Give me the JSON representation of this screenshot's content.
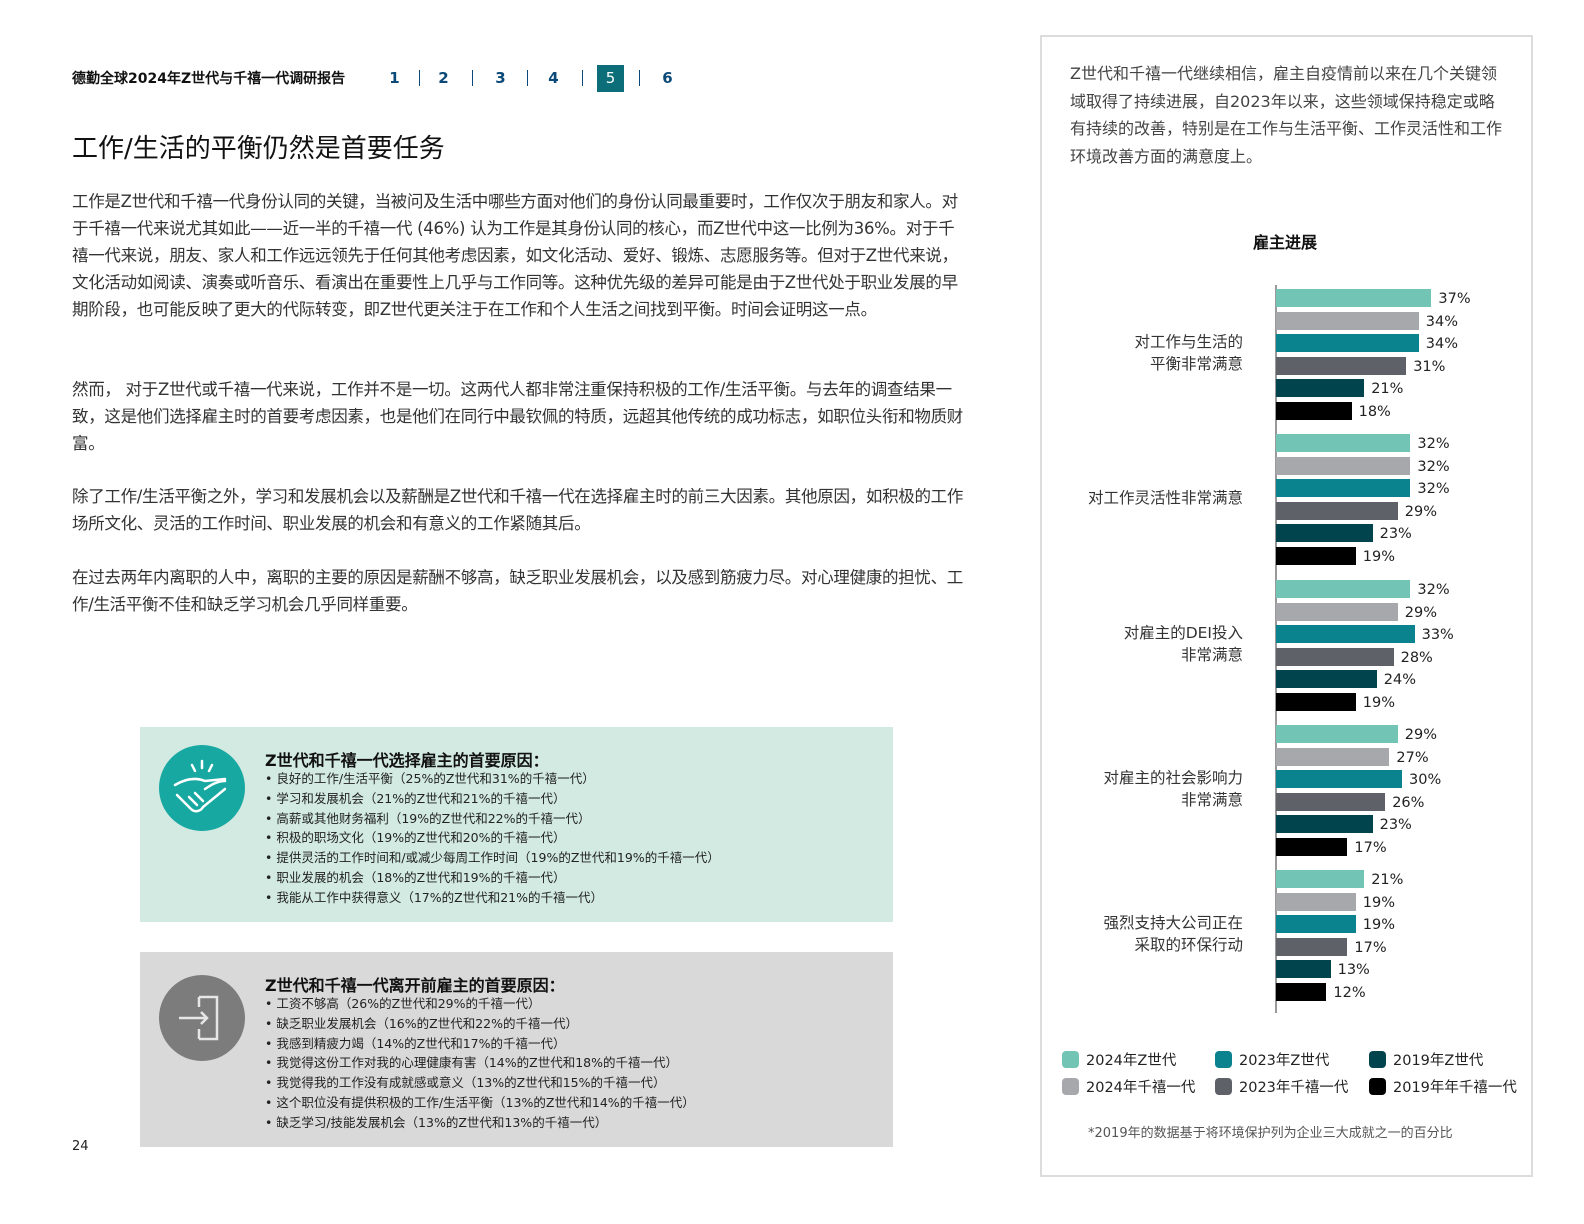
{
  "header": {
    "report_title": "德勤全球2024年Z世代与千禧一代调研报告",
    "nav": [
      "1",
      "2",
      "3",
      "4",
      "5",
      "6"
    ],
    "active_nav": "5"
  },
  "page_title": "工作/生活的平衡仍然是首要任务",
  "paragraphs": [
    "工作是Z世代和千禧一代身份认同的关键，当被问及生活中哪些方面对他们的身份认同最重要时，工作仅次于朋友和家人。对于千禧一代来说尤其如此——近一半的千禧一代 (46%) 认为工作是其身份认同的核心，而Z世代中这一比例为36%。对于千禧一代来说，朋友、家人和工作远远领先于任何其他考虑因素，如文化活动、爱好、锻炼、志愿服务等。但对于Z世代来说，文化活动如阅读、演奏或听音乐、看演出在重要性上几乎与工作同等。这种优先级的差异可能是由于Z世代处于职业发展的早期阶段，也可能反映了更大的代际转变，即Z世代更关注于在工作和个人生活之间找到平衡。时间会证明这一点。",
    "然而， 对于Z世代或千禧一代来说，工作并不是一切。这两代人都非常注重保持积极的工作/生活平衡。与去年的调查结果一致，这是他们选择雇主时的首要考虑因素，也是他们在同行中最钦佩的特质，远超其他传统的成功标志，如职位头衔和物质财富。",
    "除了工作/生活平衡之外，学习和发展机会以及薪酬是Z世代和千禧一代在选择雇主时的前三大因素。其他原因，如积极的工作场所文化、灵活的工作时间、职业发展的机会和有意义的工作紧随其后。",
    "在过去两年内离职的人中，离职的主要的原因是薪酬不够高，缺乏职业发展机会，以及感到筋疲力尽。对心理健康的担忧、工作/生活平衡不佳和缺乏学习机会几乎同样重要。"
  ],
  "choose_box": {
    "icon": "handshake-icon",
    "title": "Z世代和千禧一代选择雇主的首要原因：",
    "items": [
      "• 良好的工作/生活平衡（25%的Z世代和31%的千禧一代）",
      "• 学习和发展机会（21%的Z世代和21%的千禧一代）",
      "• 高薪或其他财务福利（19%的Z世代和22%的千禧一代）",
      "• 积极的职场文化（19%的Z世代和20%的千禧一代）",
      "• 提供灵活的工作时间和/或减少每周工作时间（19%的Z世代和19%的千禧一代）",
      "• 职业发展的机会（18%的Z世代和19%的千禧一代）",
      "• 我能从工作中获得意义（17%的Z世代和21%的千禧一代）"
    ]
  },
  "leave_box": {
    "icon": "exit-door-icon",
    "title": "Z世代和千禧一代离开前雇主的首要原因：",
    "items": [
      "• 工资不够高（26%的Z世代和29%的千禧一代）",
      "• 缺乏职业发展机会（16%的Z世代和22%的千禧一代）",
      "• 我感到精疲力竭（14%的Z世代和17%的千禧一代）",
      "• 我觉得这份工作对我的心理健康有害（14%的Z世代和18%的千禧一代）",
      "• 我觉得我的工作没有成就感或意义（13%的Z世代和15%的千禧一代）",
      "• 这个职位没有提供积极的工作/生活平衡（13%的Z世代和14%的千禧一代）",
      "• 缺乏学习/技能发展机会（13%的Z世代和13%的千禧一代）"
    ]
  },
  "page_number": "24",
  "panel_text": "Z世代和千禧一代继续相信，雇主自疫情前以来在几个关键领域取得了持续进展，自2023年以来，这些领域保持稳定或略有持续的改善，特别是在工作与生活平衡、工作灵活性和工作环境改善方面的满意度上。",
  "chart_data": {
    "type": "bar",
    "orientation": "horizontal",
    "title": "雇主进展",
    "categories": [
      "对工作与生活的\n平衡非常满意",
      "对工作灵活性非常满意",
      "对雇主的DEI投入\n非常满意",
      "对雇主的社会影响力\n非常满意",
      "强烈支持大公司正在\n采取的环保行动"
    ],
    "series": [
      {
        "name": "2024年Z世代",
        "color": "#72c4b4",
        "values": [
          37,
          32,
          32,
          29,
          21
        ]
      },
      {
        "name": "2024年千禧一代",
        "color": "#a6a8ab",
        "values": [
          34,
          32,
          29,
          27,
          19
        ]
      },
      {
        "name": "2023年Z世代",
        "color": "#0b838f",
        "values": [
          34,
          32,
          33,
          30,
          19
        ]
      },
      {
        "name": "2023年千禧一代",
        "color": "#5f6169",
        "values": [
          31,
          29,
          28,
          26,
          17
        ]
      },
      {
        "name": "2019年Z世代",
        "color": "#02444e",
        "values": [
          21,
          23,
          24,
          23,
          13
        ]
      },
      {
        "name": "2019年年千禧一代",
        "color": "#000000",
        "values": [
          18,
          19,
          19,
          17,
          12
        ]
      }
    ],
    "value_suffix": "%",
    "legend_position": "bottom",
    "grid": false,
    "note": "*2019年的数据基于将环境保护列为企业三大成就之一的百分比"
  }
}
